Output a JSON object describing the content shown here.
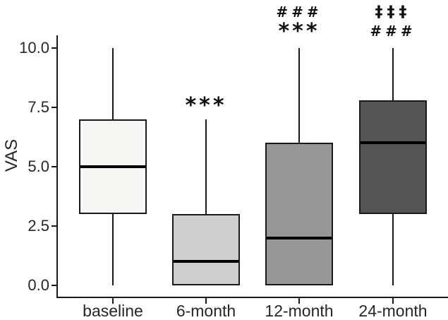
{
  "chart_data": {
    "type": "boxplot",
    "title": "",
    "xlabel": "",
    "ylabel": "VAS",
    "ylim": [
      0,
      10
    ],
    "ytick_values": [
      0,
      2.5,
      5,
      7.5,
      10
    ],
    "ytick_labels": [
      "0.0",
      "2.5",
      "5.0",
      "7.5",
      "10.0"
    ],
    "categories": [
      "baseline",
      "6-month",
      "12-month",
      "24-month"
    ],
    "grid": "off",
    "legend": "none",
    "series": [
      {
        "category": "baseline",
        "min": 0,
        "q1": 3,
        "median": 5,
        "q3": 7,
        "max": 10,
        "fill": "#f6f6f5",
        "texture": "dots",
        "annotations": []
      },
      {
        "category": "6-month",
        "min": 0,
        "q1": 0,
        "median": 1,
        "q3": 3,
        "max": 7,
        "fill": "#cecece",
        "texture": "solid",
        "annotations": [
          "***"
        ]
      },
      {
        "category": "12-month",
        "min": 0,
        "q1": 0,
        "median": 2,
        "q3": 6,
        "max": 10,
        "fill": "#979797",
        "texture": "solid",
        "annotations": [
          "###",
          "***"
        ]
      },
      {
        "category": "24-month",
        "min": 0,
        "q1": 3,
        "median": 6,
        "q3": 7.8,
        "max": 10,
        "fill": "#545454",
        "texture": "solid",
        "annotations": [
          "‡‡‡",
          "###"
        ]
      }
    ],
    "colors": {
      "axis": "#1a1a1a",
      "box_border": "#1a1a1a",
      "median": "#000000",
      "text": "#262626",
      "annotation": "#111111",
      "background": "#ffffff"
    }
  }
}
